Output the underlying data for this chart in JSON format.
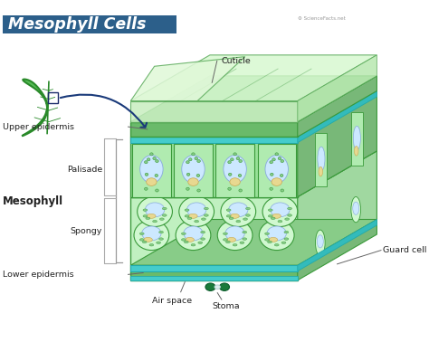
{
  "title": "Mesophyll Cells",
  "bg_color": "#ffffff",
  "title_bg": "#2c5f8a",
  "title_color": "#ffffff",
  "labels": {
    "cuticle": "Cuticle",
    "upper_epidermis": "Upper epidermis",
    "palisade": "Palisade",
    "mesophyll": "Mesophyll",
    "spongy": "Spongy",
    "lower_epidermis": "Lower epidermis",
    "air_space": "Air space",
    "stoma": "Stoma",
    "guard_cell": "Guard cell"
  },
  "colors": {
    "cuticle_top": "#d8f5d0",
    "cuticle_front": "#c8eec0",
    "cuticle_stroke": "#5aaa5a",
    "upper_epid_top": "#88cc88",
    "upper_epid_front": "#6aba6a",
    "upper_epid_stroke": "#3a9a3a",
    "cyan_band": "#44cccc",
    "cyan_stroke": "#22aaaa",
    "palisade_bg": "#98e098",
    "palisade_stroke": "#3a9a3a",
    "pal_cell_fill": "#b0ebb0",
    "pal_cell_stroke": "#3a9a3a",
    "spongy_bg": "#c0f0c0",
    "spongy_stroke": "#3a9a3a",
    "sp_cell_fill": "#d0f8d0",
    "sp_cell_stroke": "#3a9a3a",
    "lower_epid_top": "#88cc88",
    "lower_epid_front": "#6aba6a",
    "lower_epid_stroke": "#3a9a3a",
    "cell_wall": "#3a9a3a",
    "vacuole_fill": "#cce8ff",
    "vacuole_stroke": "#88aadd",
    "nucleus_fill": "#e8d890",
    "nucleus_stroke": "#c8a850",
    "chloro_fill": "#88cc88",
    "chloro_stroke": "#3a9a3a",
    "right_face_dark": "#78b878",
    "leaf_fill": "#55bb55",
    "leaf_stroke": "#2a8a2a",
    "leaf_vein": "#2a8a2a",
    "arrow_color": "#1a3a7a",
    "label_line": "#666666",
    "label_text": "#222222"
  }
}
